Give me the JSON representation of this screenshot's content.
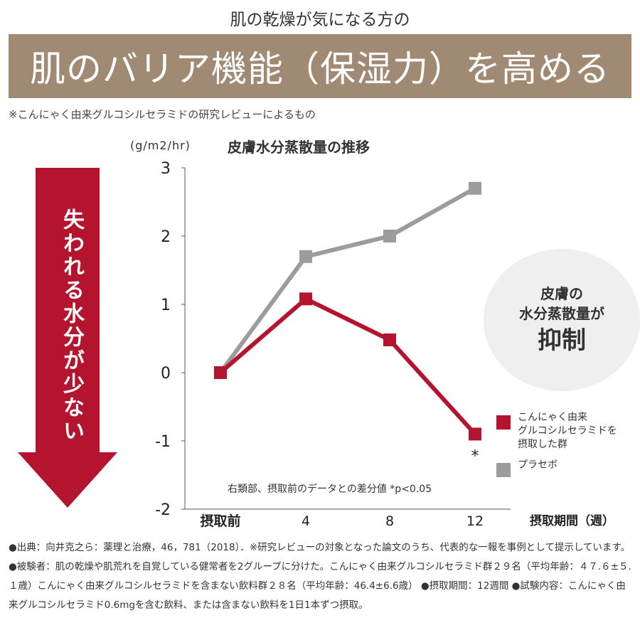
{
  "header": {
    "subtitle": "肌の乾燥が気になる方の",
    "banner_title": "肌のバリア機能（保湿力）を高める",
    "note": "※こんにゃく由来グルコシルセラミドの研究レビューによるもの"
  },
  "arrow": {
    "text": "失われる水分が少ない",
    "color": "#b5142e"
  },
  "callout": {
    "line1": "皮膚の",
    "line2": "水分蒸散量が",
    "line3": "抑制"
  },
  "legend": [
    {
      "label": "こんにゃく由来\nグルコシルセラミドを\n摂取した群",
      "color": "#b5142e"
    },
    {
      "label": "プラセボ",
      "color": "#9c9c9c"
    }
  ],
  "chart_data": {
    "type": "line",
    "title": "皮膚水分蒸散量の推移",
    "ylabel": "(g/m2/hr)",
    "xlabel": "摂取期間（週）",
    "categories": [
      "摂取前",
      "4",
      "8",
      "12"
    ],
    "ylim": [
      -2,
      3
    ],
    "yticks": [
      3,
      2,
      1,
      0,
      -1,
      -2
    ],
    "series": [
      {
        "name": "こんにゃく由来グルコシルセラミドを摂取した群",
        "values": [
          0,
          1.08,
          0.48,
          -0.9
        ],
        "color": "#b5142e"
      },
      {
        "name": "プラセボ",
        "values": [
          0,
          1.7,
          2.0,
          2.7
        ],
        "color": "#9c9c9c"
      }
    ],
    "annotation": "*",
    "footnote": "右類部、摂取前のデータとの差分値 *p<0.05"
  },
  "source": "●出典：向井克之ら：薬理と治療，46，781（2018）．※研究レビューの対象となった論文のうち、代表的な一報を事例として提示しています。●被験者：肌の乾燥や肌荒れを自覚している健常者を2グループに分けた。こんにゃく由来グルコシルセラミド群２９名（平均年齢：４７.６±５.１歳）こんにゃく由来グルコシルセラミドを含まない飲料群２８名（平均年齢：46.4±6.6歳） ●摂取期間：12週間 ●試験内容：こんにゃく由来グルコシルセラミド0.6mgを含む飲料、または含まない飲料を1日1本ずつ摂取。"
}
